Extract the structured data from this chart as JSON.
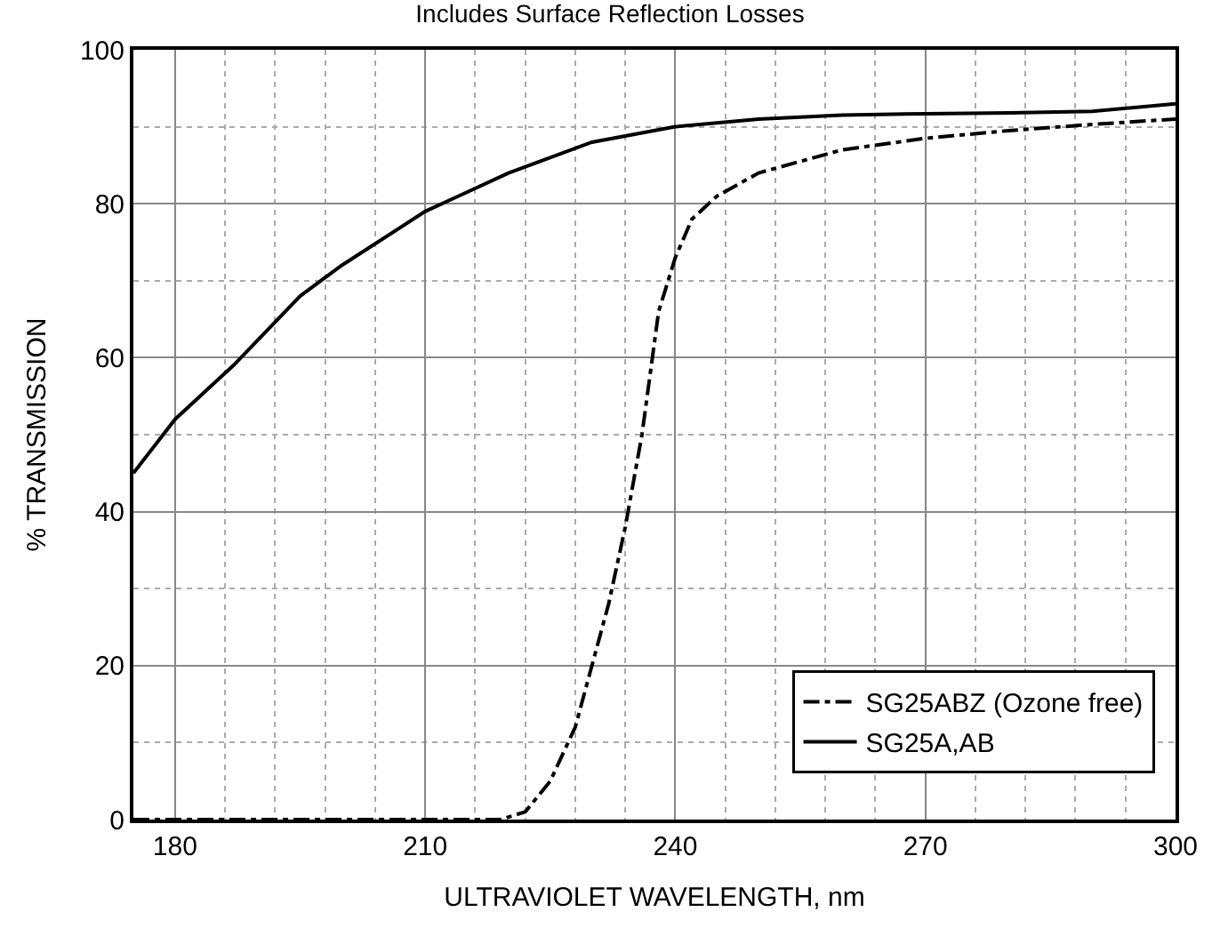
{
  "chart_data": {
    "type": "line",
    "title": "Includes Surface Reflection Losses",
    "xlabel": "ULTRAVIOLET WAVELENGTH, nm",
    "ylabel": "% TRANSMISSION",
    "xlim": [
      175,
      300
    ],
    "xticks": [
      180,
      210,
      240,
      270,
      300
    ],
    "ylim": [
      0,
      100
    ],
    "yticks": [
      0,
      20,
      40,
      60,
      80,
      100
    ],
    "grid": true,
    "legend": "bottom right",
    "series": [
      {
        "name": "SG25ABZ (Ozone free)",
        "color": "#000000",
        "line_style": "dashdot",
        "x": [
          175,
          200,
          219,
          222,
          225,
          228,
          230,
          232,
          234,
          236,
          237,
          238,
          240,
          242,
          245,
          250,
          260,
          270,
          280,
          290,
          300
        ],
        "values": [
          0,
          0,
          0,
          1,
          5,
          12,
          20,
          28,
          38,
          50,
          58,
          66,
          73,
          78,
          81,
          84,
          87,
          88.5,
          89.5,
          90.3,
          91
        ]
      },
      {
        "name": "SG25A,AB",
        "color": "#000000",
        "line_style": "solid",
        "x": [
          175,
          180,
          187,
          195,
          200,
          210,
          220,
          230,
          240,
          250,
          260,
          270,
          280,
          290,
          300
        ],
        "values": [
          45,
          52,
          59,
          68,
          72,
          79,
          84,
          88,
          90,
          91,
          91.5,
          91.7,
          91.8,
          92,
          93
        ]
      }
    ]
  }
}
